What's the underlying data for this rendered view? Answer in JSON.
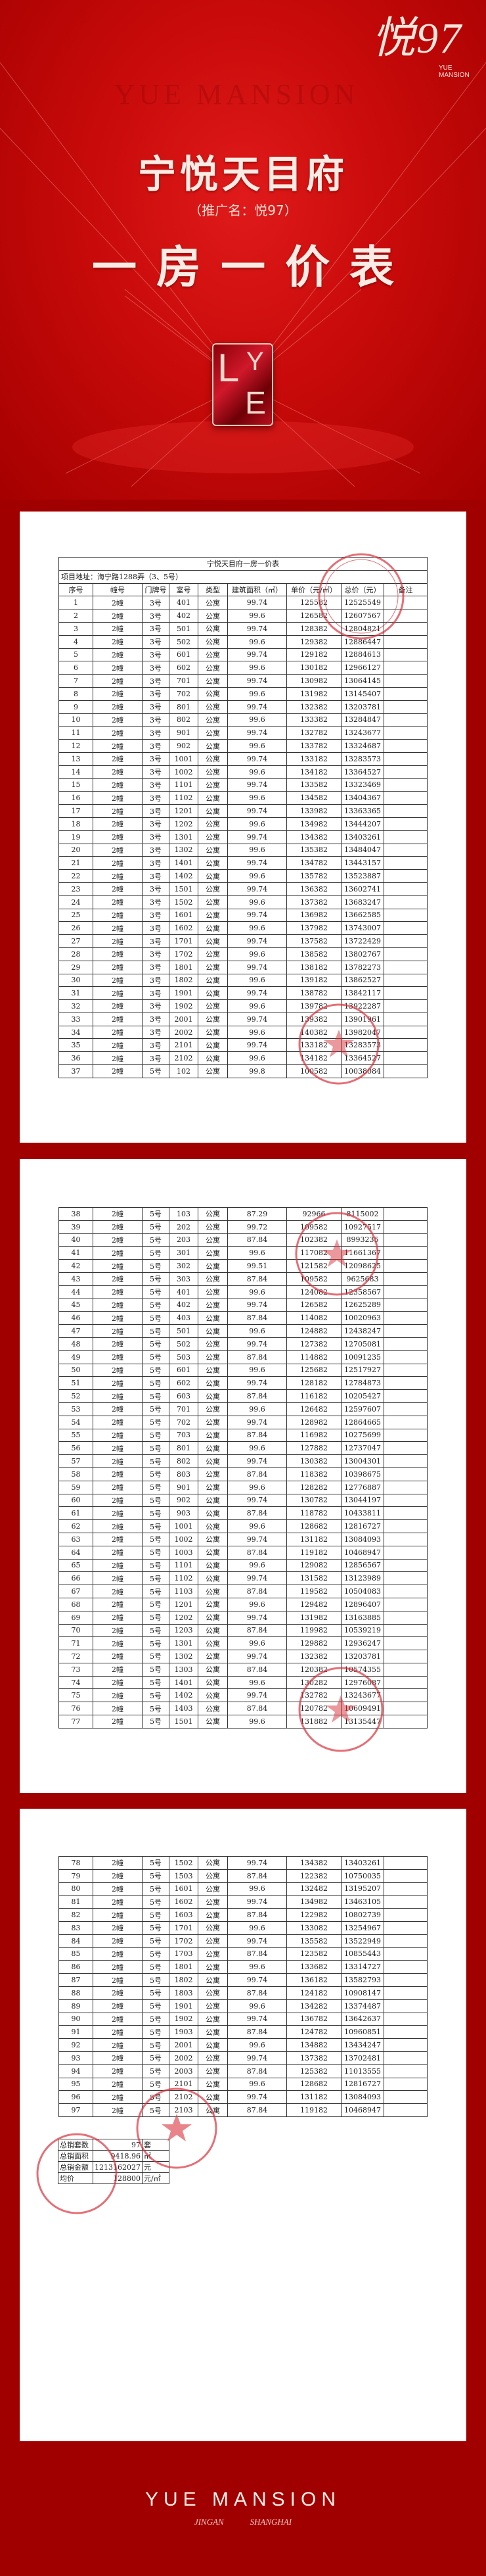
{
  "hero": {
    "brand": "悦97",
    "brand_sub_1": "YUE",
    "brand_sub_2": "MANSION",
    "watermark": "YUE MANSION",
    "title": "宁悦天目府",
    "subtitle": "（推广名：悦97）",
    "heading": "一房一价表",
    "logo_letters": [
      "L",
      "Y",
      "E"
    ]
  },
  "colors": {
    "background": "#a10000",
    "hero_red": "#e01a1a",
    "stamp": "#d8323c",
    "paper": "#ffffff"
  },
  "table": {
    "title": "宁悦天目府一房一价表",
    "address": "项目地址：海宁路1288弄（3、5号）",
    "columns": [
      "序号",
      "幢号",
      "门牌号",
      "室号",
      "类型",
      "建筑面积（㎡）",
      "单价（元/㎡）",
      "总价（元）",
      "备注"
    ],
    "rows": [
      [
        "1",
        "2幢",
        "3号",
        "401",
        "公寓",
        "99.74",
        "125582",
        "12525549",
        ""
      ],
      [
        "2",
        "2幢",
        "3号",
        "402",
        "公寓",
        "99.6",
        "126582",
        "12607567",
        ""
      ],
      [
        "3",
        "2幢",
        "3号",
        "501",
        "公寓",
        "99.74",
        "128382",
        "12804821",
        ""
      ],
      [
        "4",
        "2幢",
        "3号",
        "502",
        "公寓",
        "99.6",
        "129382",
        "12886447",
        ""
      ],
      [
        "5",
        "2幢",
        "3号",
        "601",
        "公寓",
        "99.74",
        "129182",
        "12884613",
        ""
      ],
      [
        "6",
        "2幢",
        "3号",
        "602",
        "公寓",
        "99.6",
        "130182",
        "12966127",
        ""
      ],
      [
        "7",
        "2幢",
        "3号",
        "701",
        "公寓",
        "99.74",
        "130982",
        "13064145",
        ""
      ],
      [
        "8",
        "2幢",
        "3号",
        "702",
        "公寓",
        "99.6",
        "131982",
        "13145407",
        ""
      ],
      [
        "9",
        "2幢",
        "3号",
        "801",
        "公寓",
        "99.74",
        "132382",
        "13203781",
        ""
      ],
      [
        "10",
        "2幢",
        "3号",
        "802",
        "公寓",
        "99.6",
        "133382",
        "13284847",
        ""
      ],
      [
        "11",
        "2幢",
        "3号",
        "901",
        "公寓",
        "99.74",
        "132782",
        "13243677",
        ""
      ],
      [
        "12",
        "2幢",
        "3号",
        "902",
        "公寓",
        "99.6",
        "133782",
        "13324687",
        ""
      ],
      [
        "13",
        "2幢",
        "3号",
        "1001",
        "公寓",
        "99.74",
        "133182",
        "13283573",
        ""
      ],
      [
        "14",
        "2幢",
        "3号",
        "1002",
        "公寓",
        "99.6",
        "134182",
        "13364527",
        ""
      ],
      [
        "15",
        "2幢",
        "3号",
        "1101",
        "公寓",
        "99.74",
        "133582",
        "13323469",
        ""
      ],
      [
        "16",
        "2幢",
        "3号",
        "1102",
        "公寓",
        "99.6",
        "134582",
        "13404367",
        ""
      ],
      [
        "17",
        "2幢",
        "3号",
        "1201",
        "公寓",
        "99.74",
        "133982",
        "13363365",
        ""
      ],
      [
        "18",
        "2幢",
        "3号",
        "1202",
        "公寓",
        "99.6",
        "134982",
        "13444207",
        ""
      ],
      [
        "19",
        "2幢",
        "3号",
        "1301",
        "公寓",
        "99.74",
        "134382",
        "13403261",
        ""
      ],
      [
        "20",
        "2幢",
        "3号",
        "1302",
        "公寓",
        "99.6",
        "135382",
        "13484047",
        ""
      ],
      [
        "21",
        "2幢",
        "3号",
        "1401",
        "公寓",
        "99.74",
        "134782",
        "13443157",
        ""
      ],
      [
        "22",
        "2幢",
        "3号",
        "1402",
        "公寓",
        "99.6",
        "135782",
        "13523887",
        ""
      ],
      [
        "23",
        "2幢",
        "3号",
        "1501",
        "公寓",
        "99.74",
        "136382",
        "13602741",
        ""
      ],
      [
        "24",
        "2幢",
        "3号",
        "1502",
        "公寓",
        "99.6",
        "137382",
        "13683247",
        ""
      ],
      [
        "25",
        "2幢",
        "3号",
        "1601",
        "公寓",
        "99.74",
        "136982",
        "13662585",
        ""
      ],
      [
        "26",
        "2幢",
        "3号",
        "1602",
        "公寓",
        "99.6",
        "137982",
        "13743007",
        ""
      ],
      [
        "27",
        "2幢",
        "3号",
        "1701",
        "公寓",
        "99.74",
        "137582",
        "13722429",
        ""
      ],
      [
        "28",
        "2幢",
        "3号",
        "1702",
        "公寓",
        "99.6",
        "138582",
        "13802767",
        ""
      ],
      [
        "29",
        "2幢",
        "3号",
        "1801",
        "公寓",
        "99.74",
        "138182",
        "13782273",
        ""
      ],
      [
        "30",
        "2幢",
        "3号",
        "1802",
        "公寓",
        "99.6",
        "139182",
        "13862527",
        ""
      ],
      [
        "31",
        "2幢",
        "3号",
        "1901",
        "公寓",
        "99.74",
        "138782",
        "13842117",
        ""
      ],
      [
        "32",
        "2幢",
        "3号",
        "1902",
        "公寓",
        "99.6",
        "139782",
        "13922287",
        ""
      ],
      [
        "33",
        "2幢",
        "3号",
        "2001",
        "公寓",
        "99.74",
        "139382",
        "13901961",
        ""
      ],
      [
        "34",
        "2幢",
        "3号",
        "2002",
        "公寓",
        "99.6",
        "140382",
        "13982047",
        ""
      ],
      [
        "35",
        "2幢",
        "3号",
        "2101",
        "公寓",
        "99.74",
        "133182",
        "13283573",
        ""
      ],
      [
        "36",
        "2幢",
        "3号",
        "2102",
        "公寓",
        "99.6",
        "134182",
        "13364527",
        ""
      ],
      [
        "37",
        "2幢",
        "5号",
        "102",
        "公寓",
        "99.8",
        "100582",
        "10038084",
        ""
      ],
      [
        "38",
        "2幢",
        "5号",
        "103",
        "公寓",
        "87.29",
        "92966",
        "8115002",
        ""
      ],
      [
        "39",
        "2幢",
        "5号",
        "202",
        "公寓",
        "99.72",
        "109582",
        "10927517",
        ""
      ],
      [
        "40",
        "2幢",
        "5号",
        "203",
        "公寓",
        "87.84",
        "102382",
        "8993235",
        ""
      ],
      [
        "41",
        "2幢",
        "5号",
        "301",
        "公寓",
        "99.6",
        "117082",
        "11661367",
        ""
      ],
      [
        "42",
        "2幢",
        "5号",
        "302",
        "公寓",
        "99.51",
        "121582",
        "12098625",
        ""
      ],
      [
        "43",
        "2幢",
        "5号",
        "303",
        "公寓",
        "87.84",
        "109582",
        "9625683",
        ""
      ],
      [
        "44",
        "2幢",
        "5号",
        "401",
        "公寓",
        "99.6",
        "124082",
        "12358567",
        ""
      ],
      [
        "45",
        "2幢",
        "5号",
        "402",
        "公寓",
        "99.74",
        "126582",
        "12625289",
        ""
      ],
      [
        "46",
        "2幢",
        "5号",
        "403",
        "公寓",
        "87.84",
        "114082",
        "10020963",
        ""
      ],
      [
        "47",
        "2幢",
        "5号",
        "501",
        "公寓",
        "99.6",
        "124882",
        "12438247",
        ""
      ],
      [
        "48",
        "2幢",
        "5号",
        "502",
        "公寓",
        "99.74",
        "127382",
        "12705081",
        ""
      ],
      [
        "49",
        "2幢",
        "5号",
        "503",
        "公寓",
        "87.84",
        "114882",
        "10091235",
        ""
      ],
      [
        "50",
        "2幢",
        "5号",
        "601",
        "公寓",
        "99.6",
        "125682",
        "12517927",
        ""
      ],
      [
        "51",
        "2幢",
        "5号",
        "602",
        "公寓",
        "99.74",
        "128182",
        "12784873",
        ""
      ],
      [
        "52",
        "2幢",
        "5号",
        "603",
        "公寓",
        "87.84",
        "116182",
        "10205427",
        ""
      ],
      [
        "53",
        "2幢",
        "5号",
        "701",
        "公寓",
        "99.6",
        "126482",
        "12597607",
        ""
      ],
      [
        "54",
        "2幢",
        "5号",
        "702",
        "公寓",
        "99.74",
        "128982",
        "12864665",
        ""
      ],
      [
        "55",
        "2幢",
        "5号",
        "703",
        "公寓",
        "87.84",
        "116982",
        "10275699",
        ""
      ],
      [
        "56",
        "2幢",
        "5号",
        "801",
        "公寓",
        "99.6",
        "127882",
        "12737047",
        ""
      ],
      [
        "57",
        "2幢",
        "5号",
        "802",
        "公寓",
        "99.74",
        "130382",
        "13004301",
        ""
      ],
      [
        "58",
        "2幢",
        "5号",
        "803",
        "公寓",
        "87.84",
        "118382",
        "10398675",
        ""
      ],
      [
        "59",
        "2幢",
        "5号",
        "901",
        "公寓",
        "99.6",
        "128282",
        "12776887",
        ""
      ],
      [
        "60",
        "2幢",
        "5号",
        "902",
        "公寓",
        "99.74",
        "130782",
        "13044197",
        ""
      ],
      [
        "61",
        "2幢",
        "5号",
        "903",
        "公寓",
        "87.84",
        "118782",
        "10433811",
        ""
      ],
      [
        "62",
        "2幢",
        "5号",
        "1001",
        "公寓",
        "99.6",
        "128682",
        "12816727",
        ""
      ],
      [
        "63",
        "2幢",
        "5号",
        "1002",
        "公寓",
        "99.74",
        "131182",
        "13084093",
        ""
      ],
      [
        "64",
        "2幢",
        "5号",
        "1003",
        "公寓",
        "87.84",
        "119182",
        "10468947",
        ""
      ],
      [
        "65",
        "2幢",
        "5号",
        "1101",
        "公寓",
        "99.6",
        "129082",
        "12856567",
        ""
      ],
      [
        "66",
        "2幢",
        "5号",
        "1102",
        "公寓",
        "99.74",
        "131582",
        "13123989",
        ""
      ],
      [
        "67",
        "2幢",
        "5号",
        "1103",
        "公寓",
        "87.84",
        "119582",
        "10504083",
        ""
      ],
      [
        "68",
        "2幢",
        "5号",
        "1201",
        "公寓",
        "99.6",
        "129482",
        "12896407",
        ""
      ],
      [
        "69",
        "2幢",
        "5号",
        "1202",
        "公寓",
        "99.74",
        "131982",
        "13163885",
        ""
      ],
      [
        "70",
        "2幢",
        "5号",
        "1203",
        "公寓",
        "87.84",
        "119982",
        "10539219",
        ""
      ],
      [
        "71",
        "2幢",
        "5号",
        "1301",
        "公寓",
        "99.6",
        "129882",
        "12936247",
        ""
      ],
      [
        "72",
        "2幢",
        "5号",
        "1302",
        "公寓",
        "99.74",
        "132382",
        "13203781",
        ""
      ],
      [
        "73",
        "2幢",
        "5号",
        "1303",
        "公寓",
        "87.84",
        "120382",
        "10574355",
        ""
      ],
      [
        "74",
        "2幢",
        "5号",
        "1401",
        "公寓",
        "99.6",
        "130282",
        "12976087",
        ""
      ],
      [
        "75",
        "2幢",
        "5号",
        "1402",
        "公寓",
        "99.74",
        "132782",
        "13243677",
        ""
      ],
      [
        "76",
        "2幢",
        "5号",
        "1403",
        "公寓",
        "87.84",
        "120782",
        "10609491",
        ""
      ],
      [
        "77",
        "2幢",
        "5号",
        "1501",
        "公寓",
        "99.6",
        "131882",
        "13135447",
        ""
      ],
      [
        "78",
        "2幢",
        "5号",
        "1502",
        "公寓",
        "99.74",
        "134382",
        "13403261",
        ""
      ],
      [
        "79",
        "2幢",
        "5号",
        "1503",
        "公寓",
        "87.84",
        "122382",
        "10750035",
        ""
      ],
      [
        "80",
        "2幢",
        "5号",
        "1601",
        "公寓",
        "99.6",
        "132482",
        "13195207",
        ""
      ],
      [
        "81",
        "2幢",
        "5号",
        "1602",
        "公寓",
        "99.74",
        "134982",
        "13463105",
        ""
      ],
      [
        "82",
        "2幢",
        "5号",
        "1603",
        "公寓",
        "87.84",
        "122982",
        "10802739",
        ""
      ],
      [
        "83",
        "2幢",
        "5号",
        "1701",
        "公寓",
        "99.6",
        "133082",
        "13254967",
        ""
      ],
      [
        "84",
        "2幢",
        "5号",
        "1702",
        "公寓",
        "99.74",
        "135582",
        "13522949",
        ""
      ],
      [
        "85",
        "2幢",
        "5号",
        "1703",
        "公寓",
        "87.84",
        "123582",
        "10855443",
        ""
      ],
      [
        "86",
        "2幢",
        "5号",
        "1801",
        "公寓",
        "99.6",
        "133682",
        "13314727",
        ""
      ],
      [
        "87",
        "2幢",
        "5号",
        "1802",
        "公寓",
        "99.74",
        "136182",
        "13582793",
        ""
      ],
      [
        "88",
        "2幢",
        "5号",
        "1803",
        "公寓",
        "87.84",
        "124182",
        "10908147",
        ""
      ],
      [
        "89",
        "2幢",
        "5号",
        "1901",
        "公寓",
        "99.6",
        "134282",
        "13374487",
        ""
      ],
      [
        "90",
        "2幢",
        "5号",
        "1902",
        "公寓",
        "99.74",
        "136782",
        "13642637",
        ""
      ],
      [
        "91",
        "2幢",
        "5号",
        "1903",
        "公寓",
        "87.84",
        "124782",
        "10960851",
        ""
      ],
      [
        "92",
        "2幢",
        "5号",
        "2001",
        "公寓",
        "99.6",
        "134882",
        "13434247",
        ""
      ],
      [
        "93",
        "2幢",
        "5号",
        "2002",
        "公寓",
        "99.74",
        "137382",
        "13702481",
        ""
      ],
      [
        "94",
        "2幢",
        "5号",
        "2003",
        "公寓",
        "87.84",
        "125382",
        "11013555",
        ""
      ],
      [
        "95",
        "2幢",
        "5号",
        "2101",
        "公寓",
        "99.6",
        "128682",
        "12816727",
        ""
      ],
      [
        "96",
        "2幢",
        "5号",
        "2102",
        "公寓",
        "99.74",
        "131182",
        "13084093",
        ""
      ],
      [
        "97",
        "2幢",
        "5号",
        "2103",
        "公寓",
        "87.84",
        "119182",
        "10468947",
        ""
      ]
    ]
  },
  "summary": [
    {
      "label": "总销套数",
      "value": "97",
      "unit": "套"
    },
    {
      "label": "总销面积",
      "value": "9418.96",
      "unit": "㎡"
    },
    {
      "label": "总销金额",
      "value": "1213162027",
      "unit": "元"
    },
    {
      "label": "均价",
      "value": "128800",
      "unit": "元/㎡"
    }
  ],
  "footer": {
    "brand": "YUE MANSION",
    "location": "JINGAN   SHANGHAI"
  }
}
